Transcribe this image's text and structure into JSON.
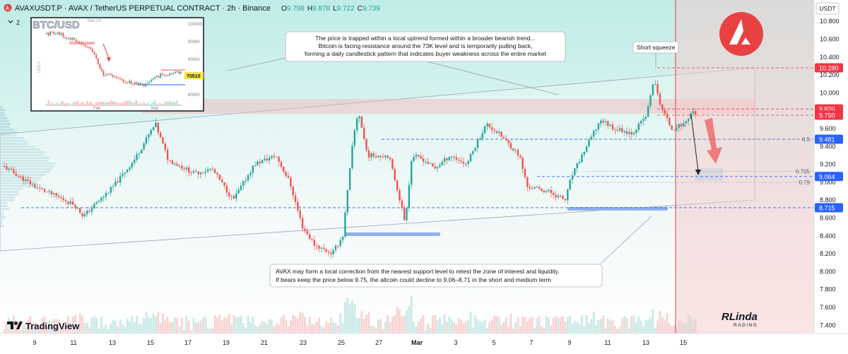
{
  "header": {
    "symbol": "AVAXUSDT.P",
    "description": "AVAX / TetherUS PERPETUAL CONTRACT · 2h · Binance",
    "ohlc": {
      "o_label": "O",
      "o": "9.798",
      "h_label": "H",
      "h": "9.878",
      "l_label": "L",
      "l": "9.722",
      "c_label": "C",
      "c": "9.739"
    },
    "indicator_count": "2"
  },
  "currency": "USDT",
  "chart_data": {
    "type": "candlestick",
    "y_ticks": [
      "10.800",
      "10.600",
      "10.400",
      "10.200",
      "10.000",
      "9.800",
      "9.600",
      "9.400",
      "9.200",
      "9.000",
      "8.800",
      "8.600",
      "8.400",
      "8.200",
      "8.000",
      "7.800",
      "7.600",
      "7.400"
    ],
    "y_range": [
      7.3,
      10.9
    ],
    "x_ticks": [
      "9",
      "11",
      "13",
      "15",
      "17",
      "19",
      "21",
      "23",
      "25",
      "27",
      "Mar",
      "3",
      "5",
      "7",
      "9",
      "11",
      "13",
      "15"
    ],
    "price_tags": [
      {
        "value": "10.280",
        "color": "#f23645"
      },
      {
        "value": "9.820",
        "color": "#f23645"
      },
      {
        "value": "9.750",
        "color": "#f23645"
      },
      {
        "value": "9.481",
        "color": "#2962ff"
      },
      {
        "value": "9.064",
        "color": "#2962ff"
      },
      {
        "value": "8.715",
        "color": "#2962ff"
      }
    ],
    "fib_labels": [
      {
        "label": "0.5",
        "value": 9.481
      },
      {
        "label": "0.705",
        "value": 9.12
      },
      {
        "label": "0.79",
        "value": 9.0
      }
    ],
    "annotations": {
      "top": [
        "The price is trapped within a local uptrend formed within a broader bearish trend...",
        "Bitcoin is facing resistance around the 73K level and is temporarily pulling back,",
        "forming a daily candlestick pattern that indicates buyer weakness across the entire market"
      ],
      "bottom": [
        "AVAX may form a local correction from the nearest support level to retest the zone of interest and liquidity.",
        "If bears keep the price below 9.75, the altcoin could decline to 9.06–8.71 in the short and medium term"
      ],
      "squeeze": "Short squeeze"
    },
    "colors": {
      "up": "#26a69a",
      "down": "#ef5350",
      "resistance": "#f23645",
      "support": "#2962ff"
    }
  },
  "inset": {
    "title": "BTC/USD",
    "date_label": "Mar 14",
    "side_label": "DAILY",
    "y_ticks": [
      "100000",
      "90000",
      "80000",
      "70000",
      "60000"
    ],
    "x_ticks": [
      "Feb",
      "Mar"
    ],
    "price_tag": "70510"
  },
  "branding": {
    "tradingview": "TradingView",
    "author_top": "RLinda",
    "author_bottom": "RADING"
  }
}
